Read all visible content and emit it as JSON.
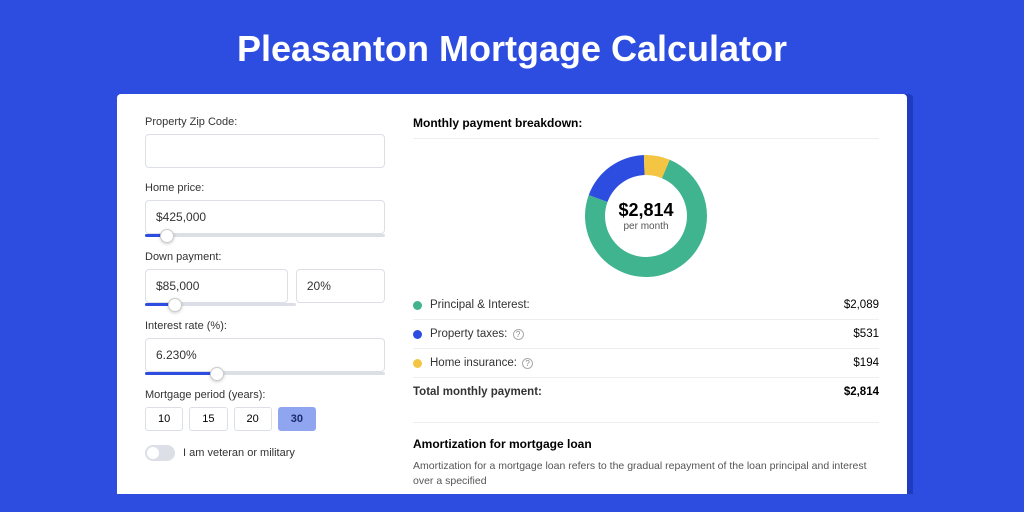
{
  "page": {
    "background_color": "#2d4de0",
    "card_background": "#ffffff",
    "card_shadow_color": "#1f3bbf"
  },
  "hero": {
    "title": "Pleasanton Mortgage Calculator",
    "title_color": "#ffffff",
    "title_fontsize": 36
  },
  "form": {
    "zip": {
      "label": "Property Zip Code:",
      "value": ""
    },
    "home_price": {
      "label": "Home price:",
      "value": "$425,000",
      "slider_pct": 9
    },
    "down_payment": {
      "label": "Down payment:",
      "amount": "$85,000",
      "percent": "20%",
      "slider_pct": 20
    },
    "interest_rate": {
      "label": "Interest rate (%):",
      "value": "6.230%",
      "slider_pct": 30
    },
    "mortgage_period": {
      "label": "Mortgage period (years):",
      "options": [
        "10",
        "15",
        "20",
        "30"
      ],
      "selected": "30"
    },
    "veteran": {
      "label": "I am veteran or military",
      "checked": false
    }
  },
  "breakdown": {
    "title": "Monthly payment breakdown:",
    "center_amount": "$2,814",
    "center_sub": "per month",
    "donut": {
      "size": 122,
      "thickness": 20,
      "slices": [
        {
          "label": "Principal & Interest:",
          "value": "$2,089",
          "color": "#3fb48e",
          "pct": 74.2
        },
        {
          "label": "Property taxes:",
          "value": "$531",
          "color": "#2d4de0",
          "pct": 18.9,
          "info": true
        },
        {
          "label": "Home insurance:",
          "value": "$194",
          "color": "#f4c542",
          "pct": 6.9,
          "info": true
        }
      ]
    },
    "total": {
      "label": "Total monthly payment:",
      "value": "$2,814"
    }
  },
  "amortization": {
    "title": "Amortization for mortgage loan",
    "text": "Amortization for a mortgage loan refers to the gradual repayment of the loan principal and interest over a specified"
  }
}
